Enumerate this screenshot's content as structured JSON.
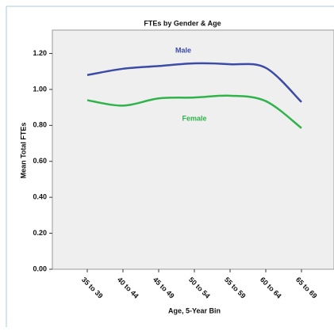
{
  "chart_data": {
    "type": "line",
    "title": "FTEs by Gender & Age",
    "x_label": "Age, 5-Year Bin",
    "y_label": "Mean Total FTEs",
    "categories": [
      "35 to 39",
      "40 to 44",
      "45 to 49",
      "50 to 54",
      "55 to 59",
      "60 to 64",
      "65 to 69"
    ],
    "series": [
      {
        "name": "Male",
        "color": "#3b4ba6",
        "values": [
          1.08,
          1.115,
          1.13,
          1.145,
          1.14,
          1.12,
          0.93
        ]
      },
      {
        "name": "Female",
        "color": "#2fb34a",
        "values": [
          0.94,
          0.91,
          0.95,
          0.955,
          0.965,
          0.935,
          0.785
        ]
      }
    ],
    "ylim": [
      0,
      1.33
    ],
    "yticks": [
      {
        "value": 0,
        "label": "0.00"
      },
      {
        "value": 0.2,
        "label": "0.20"
      },
      {
        "value": 0.4,
        "label": "0.40"
      },
      {
        "value": 0.6,
        "label": "0.60"
      },
      {
        "value": 0.8,
        "label": "0.80"
      },
      {
        "value": 1.0,
        "label": "1.00"
      },
      {
        "value": 1.2,
        "label": "1.20"
      }
    ],
    "grid": false
  }
}
